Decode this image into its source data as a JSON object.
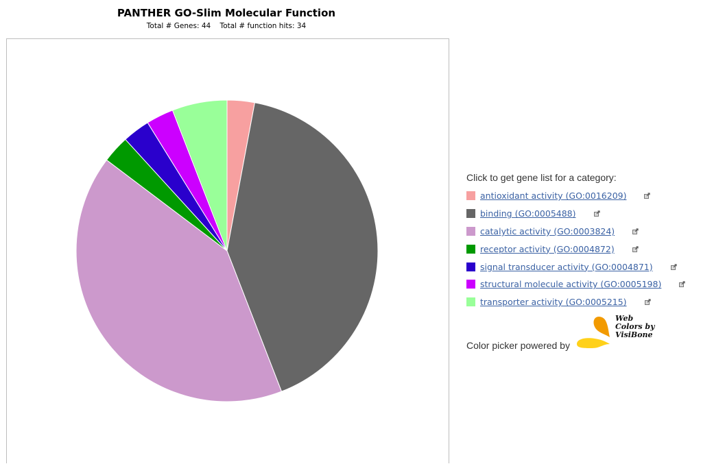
{
  "chart_data": {
    "type": "pie",
    "title": "PANTHER GO-Slim Molecular Function",
    "subtitle": "Total # Genes: 44    Total # function hits: 34",
    "categories": [
      "antioxidant activity (GO:0016209)",
      "binding (GO:0005488)",
      "catalytic activity (GO:0003824)",
      "receptor activity (GO:0004872)",
      "signal transducer activity (GO:0004871)",
      "structural molecule activity (GO:0005198)",
      "transporter activity (GO:0005215)"
    ],
    "values": [
      1,
      14,
      14,
      1,
      1,
      1,
      2
    ],
    "colors": [
      "#f7a0a0",
      "#666666",
      "#cc99cc",
      "#009900",
      "#2a00cc",
      "#cc00ff",
      "#99ff99"
    ],
    "legend_placement": "right"
  },
  "legend": {
    "heading": "Click to get gene list for a category:",
    "export_icon": "export-icon"
  },
  "color_picker": {
    "label": "Color picker powered by",
    "logo_text_line1": "Web",
    "logo_text_line2": "Colors by",
    "logo_text_line3": "VisiBone"
  }
}
